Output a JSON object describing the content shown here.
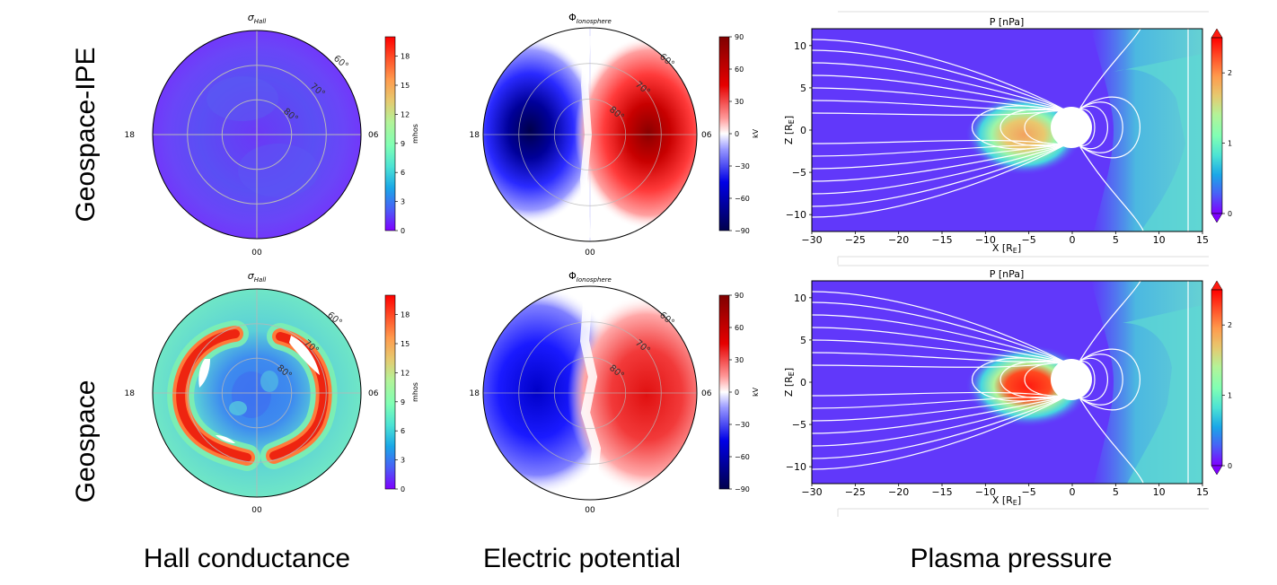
{
  "row_labels": [
    "Geospace-IPE",
    "Geospace"
  ],
  "column_labels": [
    "Hall conductance",
    "Electric potential",
    "Plasma pressure"
  ],
  "colors": {
    "rainbow": [
      "#7f00ff",
      "#4a5ff7",
      "#1aa7e7",
      "#4ce3d4",
      "#80ffb4",
      "#b3f398",
      "#e6c96f",
      "#ff9a4d",
      "#ff4f28",
      "#ff0000"
    ],
    "seismic": [
      "#00004c",
      "#0000e6",
      "#9999ff",
      "#ffffff",
      "#ff9999",
      "#e60000",
      "#7f0000"
    ]
  },
  "chart_data": [
    {
      "type": "heatmap",
      "panel": "Geospace-IPE Hall conductance",
      "title": "σHall",
      "projection": "polar",
      "mlt_labels": {
        "left": "18",
        "right": "06",
        "bottom": "00"
      },
      "latitude_labels": [
        "60°",
        "70°",
        "80°"
      ],
      "colorbar": {
        "label": "mhos",
        "ticks": [
          "0",
          "3",
          "6",
          "9",
          "12",
          "15",
          "18"
        ],
        "range": [
          0,
          20
        ],
        "colormap": "rainbow"
      },
      "field": {
        "uniform_value": 2.0,
        "ovals": []
      }
    },
    {
      "type": "heatmap",
      "panel": "Geospace-IPE Electric potential",
      "title": "ΦIonosphere",
      "projection": "polar",
      "mlt_labels": {
        "left": "18",
        "right": "06",
        "bottom": "00"
      },
      "latitude_labels": [
        "60°",
        "70°",
        "80°"
      ],
      "colorbar": {
        "label": "kV",
        "ticks": [
          "90",
          "60",
          "30",
          "0",
          "−30",
          "−60",
          "−90"
        ],
        "range": [
          -90,
          90
        ],
        "colormap": "seismic"
      },
      "cells": [
        {
          "sign": "negative",
          "peak": -85
        },
        {
          "sign": "positive",
          "peak": 75
        }
      ]
    },
    {
      "type": "heatmap",
      "panel": "Geospace-IPE Plasma pressure",
      "title": "P [nPa]",
      "xlabel": "X [RE]",
      "ylabel": "Z [RE]",
      "xlim": [
        -30,
        15
      ],
      "ylim": [
        -12,
        12
      ],
      "xticks": [
        "−30",
        "−25",
        "−20",
        "−15",
        "−10",
        "−5",
        "0",
        "5",
        "10",
        "15"
      ],
      "yticks": [
        "10",
        "5",
        "0",
        "−5",
        "−10"
      ],
      "colorbar": {
        "ticks": [
          "2",
          "1",
          "0"
        ],
        "range": [
          0,
          2.5
        ],
        "colormap": "rainbow"
      },
      "ring_current_peak": 1.8
    },
    {
      "type": "heatmap",
      "panel": "Geospace Hall conductance",
      "title": "σHall",
      "projection": "polar",
      "mlt_labels": {
        "left": "18",
        "right": "06",
        "bottom": "00"
      },
      "latitude_labels": [
        "60°",
        "70°",
        "80°"
      ],
      "colorbar": {
        "label": "mhos",
        "ticks": [
          "0",
          "3",
          "6",
          "9",
          "12",
          "15",
          "18"
        ],
        "range": [
          0,
          20
        ],
        "colormap": "rainbow"
      },
      "field": {
        "background_value": 8.0,
        "ovals": [
          {
            "side": "dusk",
            "peak": 19
          },
          {
            "side": "dawn",
            "peak": 19
          }
        ]
      }
    },
    {
      "type": "heatmap",
      "panel": "Geospace Electric potential",
      "title": "ΦIonosphere",
      "projection": "polar",
      "mlt_labels": {
        "left": "18",
        "right": "06",
        "bottom": "00"
      },
      "latitude_labels": [
        "60°",
        "70°",
        "80°"
      ],
      "colorbar": {
        "label": "kV",
        "ticks": [
          "90",
          "60",
          "30",
          "0",
          "−30",
          "−60",
          "−90"
        ],
        "range": [
          -90,
          90
        ],
        "colormap": "seismic"
      },
      "cells": [
        {
          "sign": "negative",
          "peak": -70
        },
        {
          "sign": "positive",
          "peak": 55
        }
      ]
    },
    {
      "type": "heatmap",
      "panel": "Geospace Plasma pressure",
      "title": "P [nPa]",
      "xlabel": "X [RE]",
      "ylabel": "Z [RE]",
      "xlim": [
        -30,
        15
      ],
      "ylim": [
        -12,
        12
      ],
      "xticks": [
        "−30",
        "−25",
        "−20",
        "−15",
        "−10",
        "−5",
        "0",
        "5",
        "10",
        "15"
      ],
      "yticks": [
        "10",
        "5",
        "0",
        "−5",
        "−10"
      ],
      "colorbar": {
        "ticks": [
          "2",
          "1",
          "0"
        ],
        "range": [
          0,
          2.5
        ],
        "colormap": "rainbow"
      },
      "ring_current_peak": 2.5
    }
  ]
}
